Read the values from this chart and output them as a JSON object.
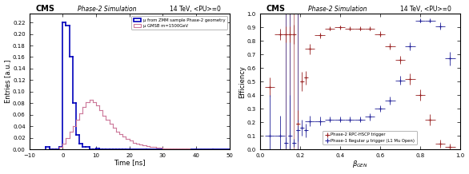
{
  "left": {
    "title_cms": "CMS",
    "title_sim": "Phase-2 Simulation",
    "title_energy": "14 TeV, <PU>=0",
    "xlabel": "Time [ns]",
    "ylabel": "Entries [a.u.]",
    "xlim": [
      -10,
      50
    ],
    "ylim": [
      0,
      0.235
    ],
    "yticks": [
      0,
      0.02,
      0.04,
      0.06,
      0.08,
      0.1,
      0.12,
      0.14,
      0.16,
      0.18,
      0.2,
      0.22
    ],
    "xticks": [
      -10,
      0,
      10,
      20,
      30,
      40,
      50
    ],
    "legend1": "μ from ZMM sample Phase-2 geometry",
    "legend2": "μ GMSB m=1500GeV",
    "blue_color": "#0000bb",
    "pink_color": "#cc7799",
    "bg_color": "#ffffff",
    "blue_bins": [
      -5,
      -4,
      -3,
      -2,
      -1,
      0,
      1,
      2,
      3,
      4,
      5,
      6,
      7,
      8,
      9,
      10,
      11,
      12,
      13,
      14,
      15,
      16,
      17,
      18,
      19,
      20,
      25,
      30,
      35,
      40,
      45,
      50
    ],
    "blue_vals": [
      0.005,
      0.0,
      0.0,
      0.0,
      0.005,
      0.22,
      0.215,
      0.16,
      0.08,
      0.025,
      0.01,
      0.005,
      0.005,
      0.0,
      0.0,
      0.002,
      0.0,
      0.0,
      0.0,
      0.0,
      0.0,
      0.0,
      0.0,
      0.0,
      0.0,
      0.0,
      0.0,
      0.0,
      0.0,
      0.0,
      0.0
    ],
    "pink_bins_x": [
      -5,
      -4,
      -3,
      -2,
      -1,
      0,
      1,
      2,
      3,
      4,
      5,
      6,
      7,
      8,
      9,
      10,
      11,
      12,
      13,
      14,
      15,
      16,
      17,
      18,
      19,
      20,
      21,
      22,
      23,
      24,
      25,
      26,
      27,
      28,
      29,
      30,
      31,
      32,
      33,
      34,
      35,
      36,
      37,
      38,
      39,
      40,
      41,
      42,
      43,
      44,
      45
    ],
    "pink_vals": [
      0.0,
      0.0,
      0.0,
      0.0,
      0.005,
      0.01,
      0.02,
      0.03,
      0.04,
      0.052,
      0.063,
      0.073,
      0.082,
      0.086,
      0.082,
      0.076,
      0.068,
      0.059,
      0.051,
      0.044,
      0.037,
      0.031,
      0.026,
      0.022,
      0.018,
      0.015,
      0.012,
      0.01,
      0.008,
      0.007,
      0.006,
      0.005,
      0.004,
      0.003,
      0.003,
      0.002,
      0.002,
      0.002,
      0.001,
      0.001,
      0.001,
      0.001,
      0.001,
      0.0,
      0.0,
      0.0,
      0.0,
      0.0,
      0.0,
      0.0,
      0.0
    ]
  },
  "right": {
    "title_cms": "CMS",
    "title_sim": "Phase-2 Simulation",
    "title_energy": "14 TeV, <PU>=0",
    "xlabel": "β_GEN",
    "ylabel": "Efficiency",
    "xlim": [
      0,
      1.0
    ],
    "ylim": [
      0,
      1.0
    ],
    "yticks": [
      0,
      0.1,
      0.2,
      0.3,
      0.4,
      0.5,
      0.6,
      0.7,
      0.8,
      0.9,
      1.0
    ],
    "xticks": [
      0,
      0.2,
      0.4,
      0.6,
      0.8,
      1.0
    ],
    "legend_red": "Phase-2 RPC-HSCP trigger",
    "legend_blue": "Phase-1 Regular μ trigger (L1 Mu Open)",
    "red_color": "#992222",
    "blue_color": "#222299",
    "bg_color": "#ffffff",
    "red_x": [
      0.05,
      0.1,
      0.13,
      0.15,
      0.17,
      0.19,
      0.21,
      0.23,
      0.25,
      0.3,
      0.35,
      0.4,
      0.45,
      0.5,
      0.55,
      0.6,
      0.65,
      0.7,
      0.75,
      0.8,
      0.85,
      0.9,
      0.95
    ],
    "red_y": [
      0.46,
      0.85,
      0.85,
      0.85,
      0.85,
      0.19,
      0.5,
      0.53,
      0.74,
      0.84,
      0.89,
      0.9,
      0.89,
      0.89,
      0.89,
      0.85,
      0.76,
      0.66,
      0.52,
      0.4,
      0.22,
      0.04,
      0.02
    ],
    "red_xerr": [
      0.025,
      0.025,
      0.01,
      0.01,
      0.01,
      0.01,
      0.01,
      0.01,
      0.025,
      0.025,
      0.025,
      0.025,
      0.025,
      0.025,
      0.025,
      0.025,
      0.025,
      0.025,
      0.025,
      0.025,
      0.025,
      0.025,
      0.025
    ],
    "red_yerr": [
      0.07,
      0.04,
      0.06,
      0.06,
      0.07,
      0.1,
      0.07,
      0.05,
      0.04,
      0.02,
      0.015,
      0.015,
      0.015,
      0.015,
      0.015,
      0.02,
      0.025,
      0.03,
      0.04,
      0.04,
      0.04,
      0.03,
      0.02
    ],
    "blue_x": [
      0.05,
      0.1,
      0.13,
      0.15,
      0.17,
      0.19,
      0.21,
      0.23,
      0.25,
      0.3,
      0.35,
      0.4,
      0.45,
      0.5,
      0.55,
      0.6,
      0.65,
      0.7,
      0.75,
      0.8,
      0.85,
      0.9,
      0.95
    ],
    "blue_y": [
      0.1,
      0.1,
      0.05,
      0.1,
      0.05,
      0.14,
      0.16,
      0.14,
      0.21,
      0.21,
      0.22,
      0.22,
      0.22,
      0.22,
      0.24,
      0.3,
      0.36,
      0.51,
      0.76,
      0.95,
      0.95,
      0.91,
      0.67
    ],
    "blue_xerr": [
      0.025,
      0.025,
      0.01,
      0.01,
      0.01,
      0.01,
      0.01,
      0.01,
      0.025,
      0.025,
      0.025,
      0.025,
      0.025,
      0.025,
      0.025,
      0.025,
      0.025,
      0.025,
      0.025,
      0.025,
      0.025,
      0.025,
      0.025
    ],
    "blue_yerr": [
      0.3,
      0.15,
      0.04,
      0.3,
      0.03,
      0.08,
      0.06,
      0.05,
      0.04,
      0.03,
      0.02,
      0.02,
      0.02,
      0.02,
      0.025,
      0.025,
      0.03,
      0.03,
      0.03,
      0.015,
      0.015,
      0.025,
      0.05
    ],
    "red_vlines_x": [
      0.13,
      0.15,
      0.17,
      0.19
    ],
    "blue_vlines_x": [
      0.13,
      0.15,
      0.19
    ]
  }
}
